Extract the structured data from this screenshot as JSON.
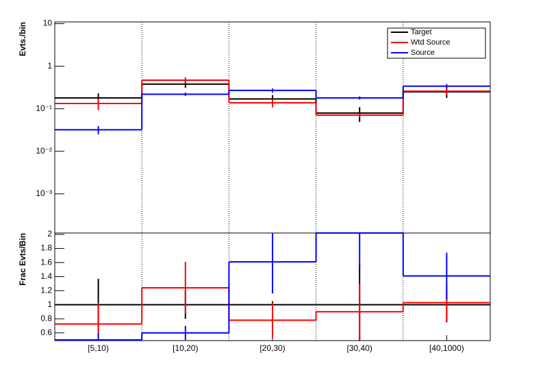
{
  "chart_data": [
    {
      "type": "histogram",
      "y_label": "Evts./bin",
      "log_y": true,
      "xgrid": true,
      "legend": "top-right",
      "ylim": [
        0.00012,
        11
      ],
      "yticks": [
        {
          "value": 0.001,
          "label": "10⁻³"
        },
        {
          "value": 0.01,
          "label": "10⁻²"
        },
        {
          "value": 0.1,
          "label": "10⁻¹"
        },
        1,
        10
      ],
      "series": [
        {
          "name": "Target",
          "color": "#000000",
          "values": [
            0.18,
            0.38,
            0.17,
            0.079,
            0.25
          ],
          "errors": [
            0.05,
            0.07,
            0.04,
            0.03,
            0.07
          ]
        },
        {
          "name": "Wtd Source",
          "color": "#ff0000",
          "values": [
            0.133,
            0.47,
            0.138,
            0.071,
            0.26
          ],
          "errors": [
            0.04,
            0.08,
            0.03,
            0.008,
            0.05
          ]
        },
        {
          "name": "Source",
          "color": "#0000ff",
          "values": [
            0.032,
            0.22,
            0.27,
            0.18,
            0.34
          ],
          "errors": [
            0.007,
            0.02,
            0.03,
            0.015,
            0.04
          ]
        }
      ]
    },
    {
      "type": "histogram",
      "y_label": "Frac Evts/Bin",
      "log_y": false,
      "xgrid": true,
      "categories": [
        "[5,10)",
        "[10,20)",
        "[20,30)",
        "[30,40)",
        "[40,1000)"
      ],
      "ylim": [
        0.49,
        2.02
      ],
      "yticks": [
        0.6,
        0.8,
        1,
        1.2,
        1.4,
        1.6,
        1.8,
        2
      ],
      "series": [
        {
          "color": "#000000",
          "values": [
            1,
            1,
            1,
            1,
            1
          ],
          "errors": [
            0.37,
            0.2,
            0.05,
            0.58,
            0.25
          ]
        },
        {
          "color": "#ff0000",
          "values": [
            0.726,
            1.24,
            0.78,
            0.9,
            1.03
          ],
          "errors": [
            0.3,
            0.37,
            0.25,
            0.4,
            0.27
          ]
        },
        {
          "color": "#0000ff",
          "values": [
            0.5,
            0.6,
            1.61,
            2.02,
            1.41
          ],
          "errors": [
            0.1,
            0.1,
            0.45,
            0.5,
            0.33
          ]
        }
      ]
    }
  ]
}
